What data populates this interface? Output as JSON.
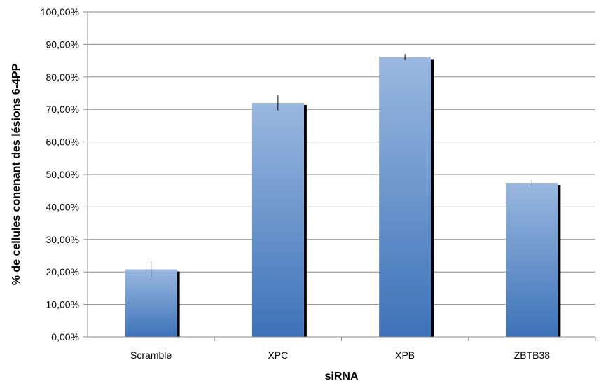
{
  "chart_data": {
    "type": "bar",
    "title": "",
    "xlabel": "siRNA",
    "ylabel": "% de cellules conenant des lésions 6-4PP",
    "categories": [
      "Scramble",
      "XPC",
      "XPB",
      "ZBTB38"
    ],
    "values": [
      20.8,
      72.0,
      86.1,
      47.4
    ],
    "error_bars": [
      2.5,
      2.3,
      0.9,
      1.0
    ],
    "ylim": [
      0,
      100
    ],
    "yticks": [
      0,
      10,
      20,
      30,
      40,
      50,
      60,
      70,
      80,
      90,
      100
    ],
    "ytick_labels": [
      "0,00%",
      "10,00%",
      "20,00%",
      "30,00%",
      "40,00%",
      "50,00%",
      "60,00%",
      "70,00%",
      "80,00%",
      "90,00%",
      "100,00%"
    ],
    "grid": true,
    "legend": "none",
    "colors": {
      "bar_top": "#9ab8e0",
      "bar_bottom": "#3d72b8",
      "shadow": "#000000",
      "grid": "#8c8c8c"
    }
  }
}
